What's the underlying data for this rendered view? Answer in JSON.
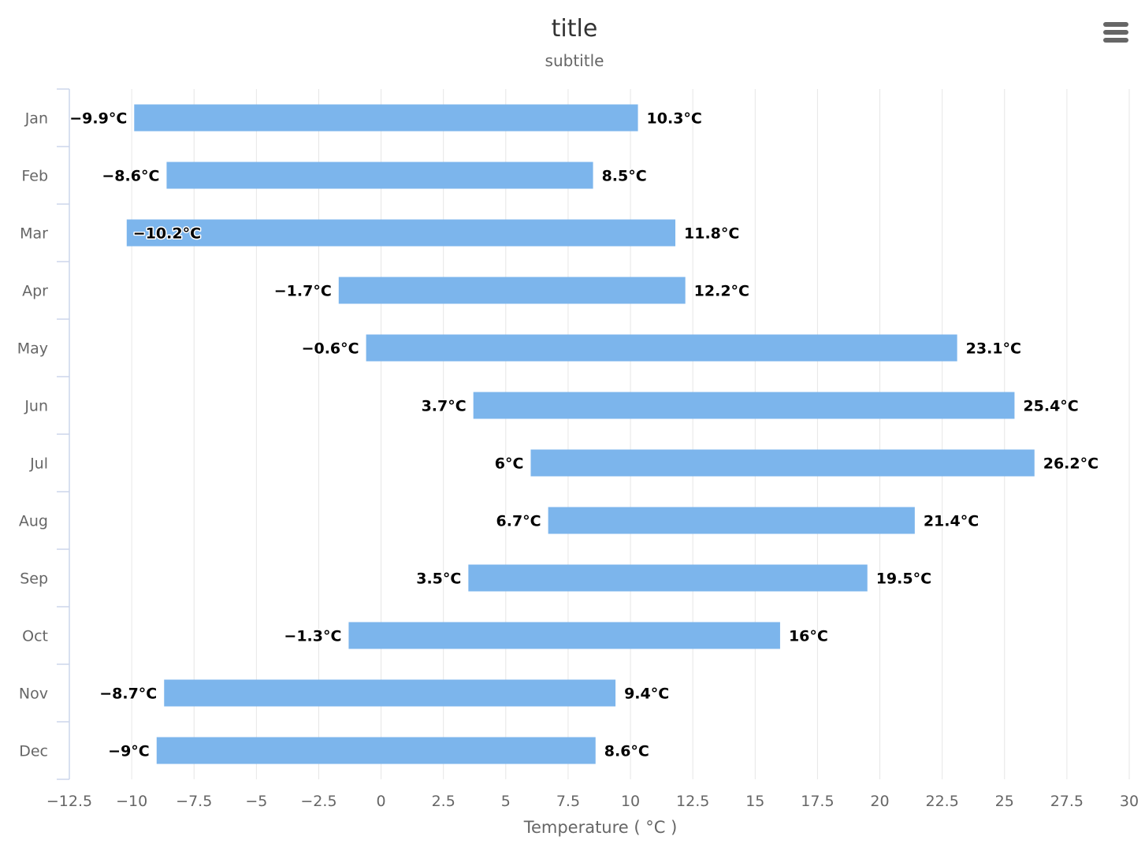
{
  "chart_data": {
    "type": "bar",
    "orientation": "horizontal",
    "subtype": "range",
    "title": "title",
    "subtitle": "subtitle",
    "xlabel": "Temperature ( °C )",
    "ylabel": "",
    "unit_suffix": "°C",
    "xlim": [
      -12.5,
      30
    ],
    "ticks": [
      "−12.5",
      "−10",
      "−7.5",
      "−5",
      "−2.5",
      "0",
      "2.5",
      "5",
      "7.5",
      "10",
      "12.5",
      "15",
      "17.5",
      "20",
      "22.5",
      "25",
      "27.5",
      "30"
    ],
    "tick_values": [
      -12.5,
      -10,
      -7.5,
      -5,
      -2.5,
      0,
      2.5,
      5,
      7.5,
      10,
      12.5,
      15,
      17.5,
      20,
      22.5,
      25,
      27.5,
      30
    ],
    "categories": [
      "Jan",
      "Feb",
      "Mar",
      "Apr",
      "May",
      "Jun",
      "Jul",
      "Aug",
      "Sep",
      "Oct",
      "Nov",
      "Dec"
    ],
    "low": [
      -9.9,
      -8.6,
      -10.2,
      -1.7,
      -0.6,
      3.7,
      6,
      6.7,
      3.5,
      -1.3,
      -8.7,
      -9
    ],
    "high": [
      10.3,
      8.5,
      11.8,
      12.2,
      23.1,
      25.4,
      26.2,
      21.4,
      19.5,
      16,
      9.4,
      8.6
    ],
    "low_labels": [
      "−9.9°C",
      "−8.6°C",
      "−10.2°C",
      "−1.7°C",
      "−0.6°C",
      "3.7°C",
      "6°C",
      "6.7°C",
      "3.5°C",
      "−1.3°C",
      "−8.7°C",
      "−9°C"
    ],
    "high_labels": [
      "10.3°C",
      "8.5°C",
      "11.8°C",
      "12.2°C",
      "23.1°C",
      "25.4°C",
      "26.2°C",
      "21.4°C",
      "19.5°C",
      "16°C",
      "9.4°C",
      "8.6°C"
    ],
    "grid": true,
    "legend": "none",
    "colors": {
      "bar": "#7cb5ec",
      "grid": "#e6e6e6",
      "axis": "#ccd6eb"
    }
  },
  "menu": {
    "icon": "hamburger-menu-icon"
  }
}
